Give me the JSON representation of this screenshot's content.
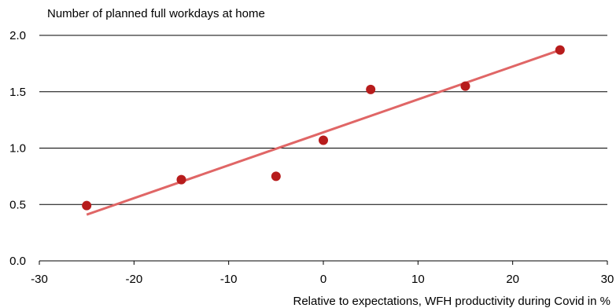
{
  "chart_data": {
    "type": "scatter",
    "ylabel": "Number of planned full workdays at home",
    "xlabel": "Relative to expectations, WFH productivity during Covid in %",
    "xlim": [
      -30,
      30
    ],
    "ylim": [
      0.0,
      2.0
    ],
    "x_ticks": [
      -30,
      -20,
      -10,
      0,
      10,
      20,
      30
    ],
    "y_ticks": [
      "0.0",
      "0.5",
      "1.0",
      "1.5",
      "2.0"
    ],
    "grid": "horizontal",
    "points": [
      {
        "x": -25,
        "y": 0.49
      },
      {
        "x": -15,
        "y": 0.72
      },
      {
        "x": -5,
        "y": 0.75
      },
      {
        "x": 0,
        "y": 1.07
      },
      {
        "x": 5,
        "y": 1.52
      },
      {
        "x": 15,
        "y": 1.55
      },
      {
        "x": 25,
        "y": 1.87
      }
    ],
    "trendline": {
      "x": [
        -25,
        25
      ],
      "y": [
        0.41,
        1.87
      ]
    },
    "colors": {
      "points": "#b71c1c",
      "trendline": "#e06666",
      "grid": "#000000"
    }
  }
}
